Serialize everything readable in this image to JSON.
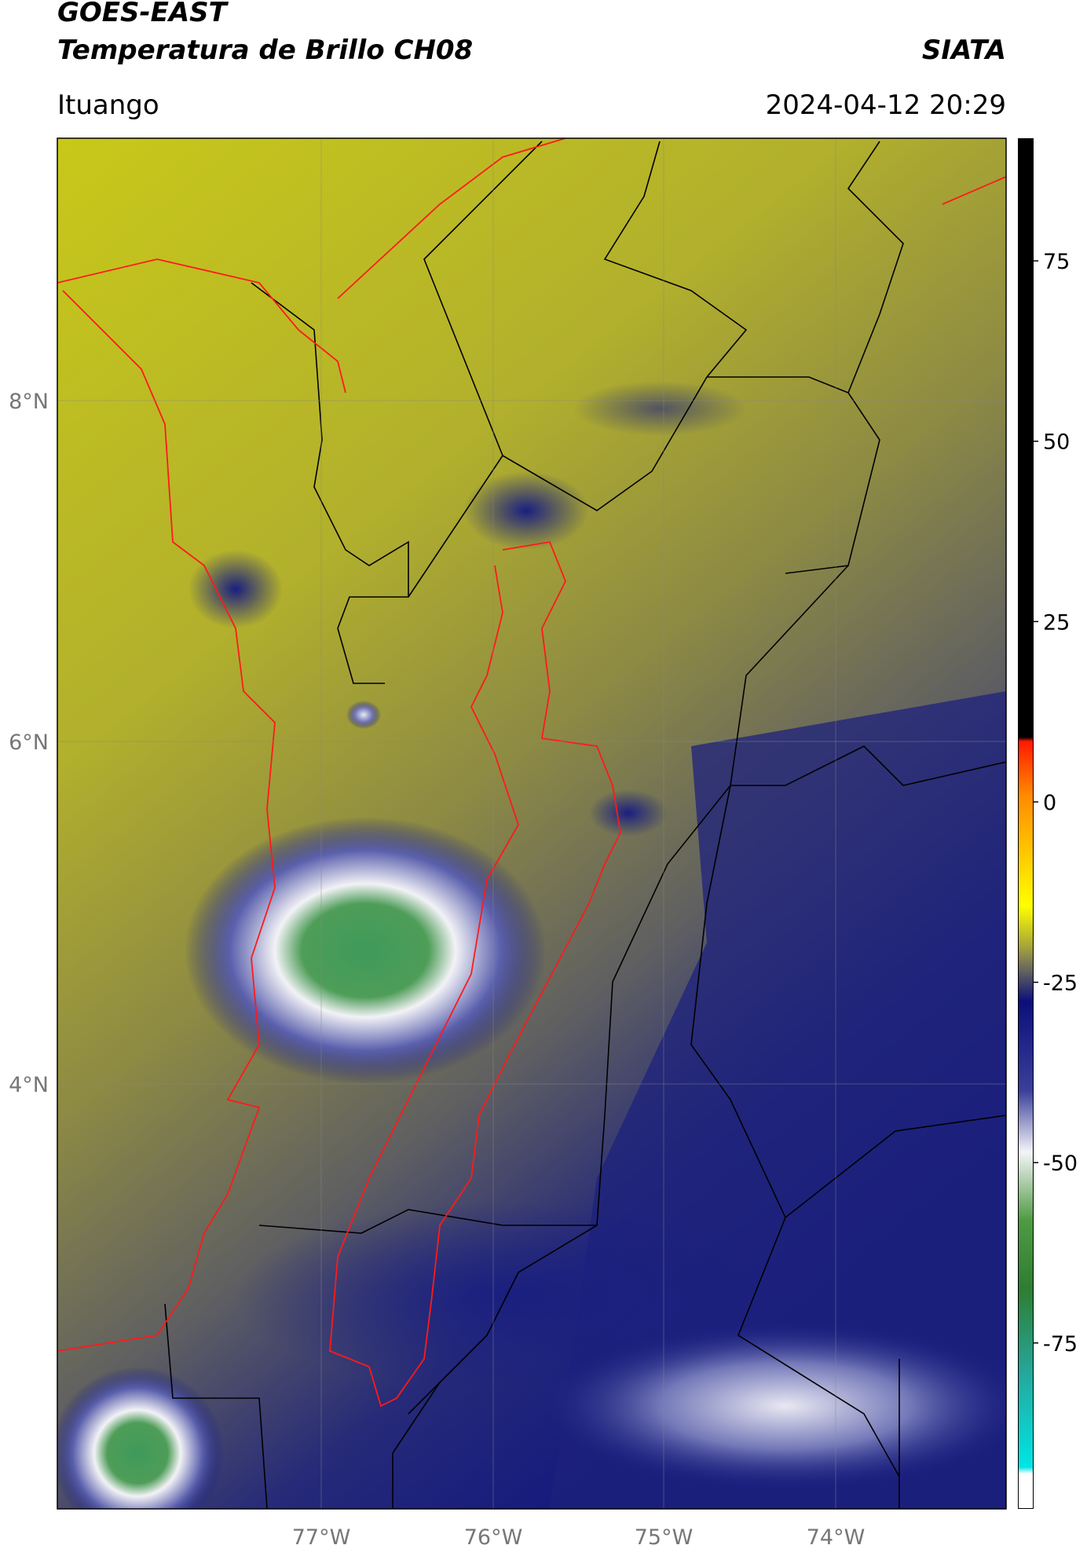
{
  "header": {
    "title_line1": "GOES-EAST",
    "title_line2": "Temperatura de Brillo CH08",
    "brand": "SIATA",
    "location": "Ituango",
    "datetime": "2024-04-12 20:29"
  },
  "map": {
    "lat_labels": [
      "8°N",
      "6°N",
      "4°N"
    ],
    "lon_labels": [
      "77°W",
      "76°W",
      "75°W",
      "74°W"
    ]
  },
  "colorbar": {
    "lim": [
      -98,
      92
    ],
    "ticks": [
      75,
      50,
      25,
      0,
      -25,
      -50,
      -75
    ]
  }
}
